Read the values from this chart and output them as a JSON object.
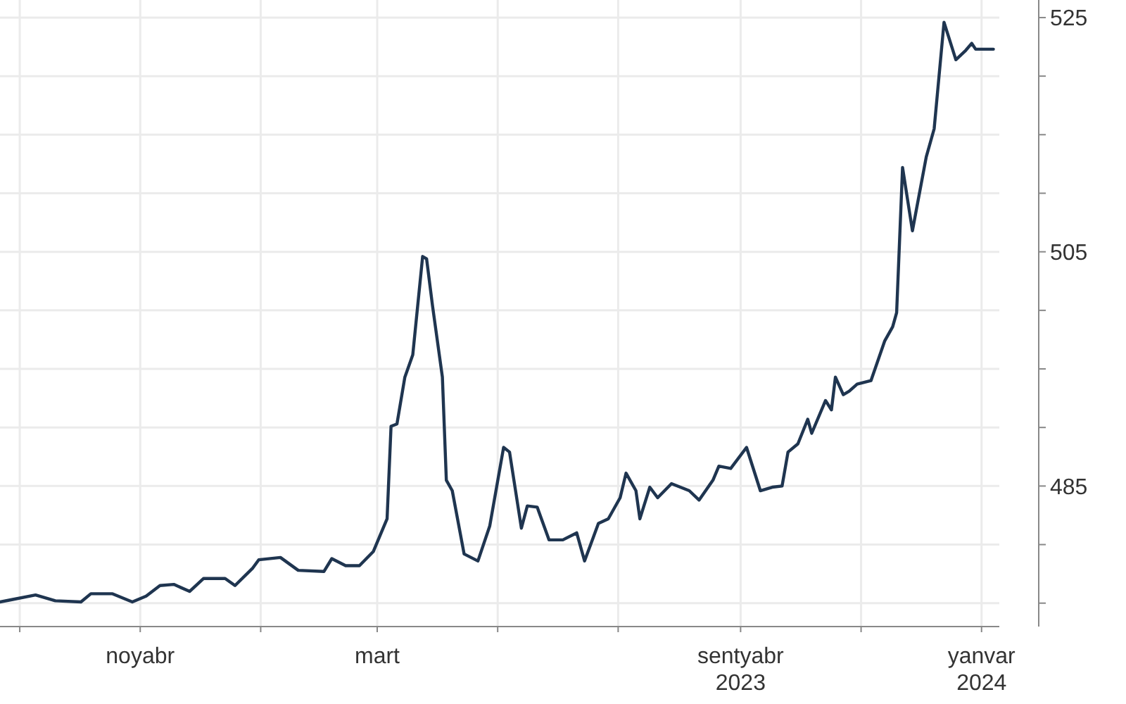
{
  "chart_data": {
    "type": "line",
    "xlim": [
      "2022-08-22",
      "2024-01-10"
    ],
    "ylim": [
      473,
      526.5
    ],
    "xticks": [
      {
        "value": "2022-09-01",
        "label": null
      },
      {
        "value": "2022-11-01",
        "label": "noyabr"
      },
      {
        "value": "2023-01-01",
        "label": null
      },
      {
        "value": "2023-03-01",
        "label": "mart"
      },
      {
        "value": "2023-05-01",
        "label": null
      },
      {
        "value": "2023-07-01",
        "label": null
      },
      {
        "value": "2023-09-01",
        "label": "sentyabr\n2023"
      },
      {
        "value": "2023-11-01",
        "label": null
      },
      {
        "value": "2024-01-01",
        "label": "yanvar\n2024"
      }
    ],
    "yticks": [
      {
        "value": 475,
        "label": null
      },
      {
        "value": 480,
        "label": null
      },
      485,
      {
        "value": 490,
        "label": null
      },
      {
        "value": 495,
        "label": null
      },
      {
        "value": 500,
        "label": null
      },
      505,
      {
        "value": 510,
        "label": null
      },
      {
        "value": 515,
        "label": null
      },
      {
        "value": 520,
        "label": null
      },
      525
    ],
    "grid": true,
    "series": [
      {
        "color": "#1f3550",
        "line_style": "solid",
        "marker": "none",
        "x": [
          "2022-08-22",
          "2022-08-28",
          "2022-09-09",
          "2022-09-19",
          "2022-10-02",
          "2022-10-07",
          "2022-10-18",
          "2022-10-28",
          "2022-11-04",
          "2022-11-11",
          "2022-11-18",
          "2022-11-26",
          "2022-12-03",
          "2022-12-14",
          "2022-12-19",
          "2022-12-28",
          "2022-12-31",
          "2023-01-11",
          "2023-01-20",
          "2023-02-02",
          "2023-02-06",
          "2023-02-13",
          "2023-02-20",
          "2023-02-27",
          "2023-03-03",
          "2023-03-06",
          "2023-03-08",
          "2023-03-11",
          "2023-03-15",
          "2023-03-19",
          "2023-03-24",
          "2023-03-26",
          "2023-03-29",
          "2023-04-03",
          "2023-04-05",
          "2023-04-08",
          "2023-04-14",
          "2023-04-21",
          "2023-04-27",
          "2023-05-04",
          "2023-05-07",
          "2023-05-13",
          "2023-05-16",
          "2023-05-21",
          "2023-05-27",
          "2023-06-03",
          "2023-06-10",
          "2023-06-14",
          "2023-06-21",
          "2023-06-26",
          "2023-07-02",
          "2023-07-05",
          "2023-07-10",
          "2023-07-12",
          "2023-07-17",
          "2023-07-21",
          "2023-07-28",
          "2023-08-06",
          "2023-08-11",
          "2023-08-18",
          "2023-08-21",
          "2023-08-27",
          "2023-09-04",
          "2023-09-11",
          "2023-09-17",
          "2023-09-22",
          "2023-09-25",
          "2023-09-30",
          "2023-10-05",
          "2023-10-07",
          "2023-10-14",
          "2023-10-17",
          "2023-10-19",
          "2023-10-23",
          "2023-10-26",
          "2023-10-30",
          "2023-11-06",
          "2023-11-13",
          "2023-11-17",
          "2023-11-19",
          "2023-11-22",
          "2023-11-27",
          "2023-12-04",
          "2023-12-08",
          "2023-12-13",
          "2023-12-19",
          "2023-12-24",
          "2023-12-27",
          "2023-12-29",
          "2024-01-07"
        ],
        "values": [
          475.1,
          475.3,
          475.7,
          475.2,
          475.1,
          475.8,
          475.8,
          475.1,
          475.6,
          476.5,
          476.6,
          476.0,
          477.1,
          477.1,
          476.5,
          478.0,
          478.7,
          478.9,
          477.8,
          477.7,
          478.8,
          478.2,
          478.2,
          479.4,
          481.0,
          482.2,
          490.1,
          490.3,
          494.3,
          496.2,
          504.6,
          504.4,
          500.4,
          494.3,
          485.5,
          484.6,
          479.2,
          478.6,
          481.6,
          488.3,
          487.9,
          481.4,
          483.3,
          483.2,
          480.4,
          480.4,
          481.0,
          478.6,
          481.8,
          482.2,
          484.0,
          486.1,
          484.6,
          482.2,
          484.9,
          484.0,
          485.2,
          484.6,
          483.8,
          485.5,
          486.7,
          486.5,
          488.3,
          484.6,
          484.9,
          485.0,
          487.9,
          488.6,
          490.7,
          489.5,
          492.3,
          491.5,
          494.3,
          492.8,
          493.1,
          493.7,
          494.0,
          497.4,
          498.6,
          499.8,
          512.2,
          506.8,
          513.1,
          515.5,
          524.6,
          521.4,
          522.2,
          522.8,
          522.3,
          522.3
        ]
      }
    ]
  }
}
